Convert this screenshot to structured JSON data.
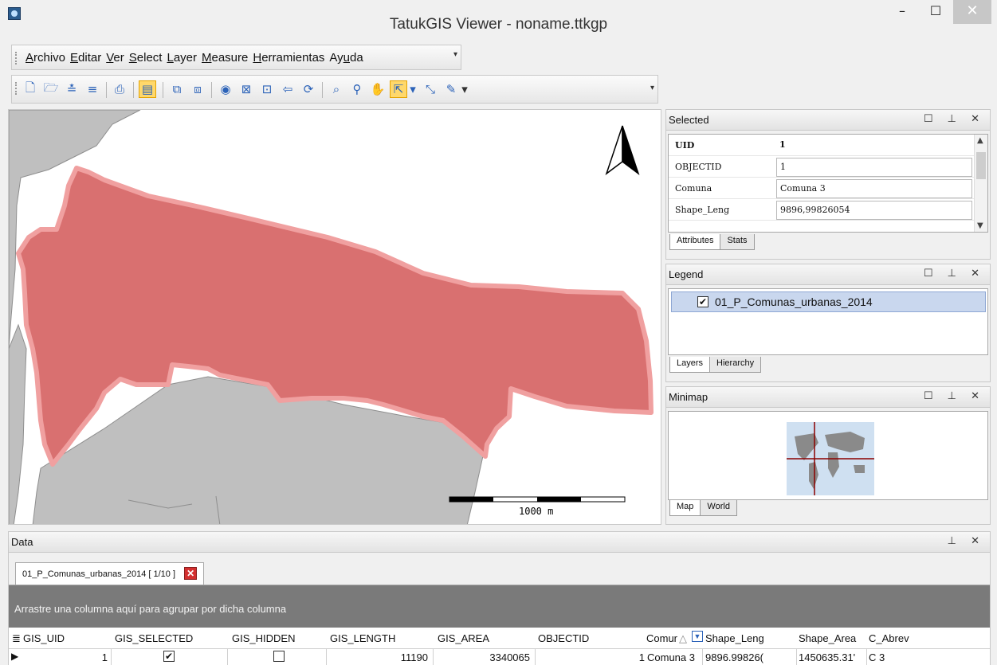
{
  "window": {
    "title": "TatukGIS Viewer - noname.ttkgp",
    "min_glyph": "–",
    "max_glyph": "☐",
    "close_glyph": "✕"
  },
  "menubar": {
    "items": [
      {
        "label": "Archivo",
        "accel": "A"
      },
      {
        "label": "Editar",
        "accel": "E"
      },
      {
        "label": "Ver",
        "accel": "V"
      },
      {
        "label": "Select",
        "accel": "S"
      },
      {
        "label": "Layer",
        "accel": "L"
      },
      {
        "label": "Measure",
        "accel": "M"
      },
      {
        "label": "Herramientas",
        "accel": "H"
      },
      {
        "label": "Ayuda",
        "accel": "u"
      }
    ]
  },
  "toolbar": {
    "icons": [
      "new-icon",
      "open-icon",
      "add-layer-icon",
      "remove-layer-icon",
      "print-icon",
      "edit-properties-icon",
      "copy-icon",
      "export-icon",
      "globe-icon",
      "zoom-extent-icon",
      "zoom-layer-icon",
      "back-icon",
      "refresh-icon",
      "zoom-icon",
      "magnifier-icon",
      "pan-hand-icon",
      "select-arrow-icon",
      "select-dropdown-icon",
      "select-tool-icon",
      "measure-pencil-icon",
      "measure-dropdown-icon"
    ]
  },
  "map": {
    "scalebar_label": "1000 m",
    "selected_fill": "#d97070",
    "selected_outline": "#f0a0a0",
    "background_fill": "#bfbfbf"
  },
  "selected_panel": {
    "title": "Selected",
    "controls": "☐ ⊥ ✕",
    "rows": [
      {
        "key": "UID",
        "value": "1"
      },
      {
        "key": "OBJECTID",
        "value": "1"
      },
      {
        "key": "Comuna",
        "value": "Comuna 3"
      },
      {
        "key": "Shape_Leng",
        "value": "9896,99826054"
      }
    ],
    "tabs": [
      "Attributes",
      "Stats"
    ]
  },
  "legend_panel": {
    "title": "Legend",
    "controls": "☐ ⊥ ✕",
    "layer_name": "01_P_Comunas_urbanas_2014",
    "layer_checked": "✔",
    "tabs": [
      "Layers",
      "Hierarchy"
    ]
  },
  "minimap_panel": {
    "title": "Minimap",
    "controls": "☐ ⊥ ✕",
    "tabs": [
      "Map",
      "World"
    ]
  },
  "data_panel": {
    "title": "Data",
    "controls": "⊥ ✕",
    "tab_label": "01_P_Comunas_urbanas_2014 [ 1/10 ]",
    "tab_close": "✕",
    "group_hint": "Arrastre una columna aquí para agrupar por dicha columna",
    "columns": [
      "GIS_UID",
      "GIS_SELECTED",
      "GIS_HIDDEN",
      "GIS_LENGTH",
      "GIS_AREA",
      "OBJECTID",
      "Comur",
      "Shape_Leng",
      "Shape_Area",
      "C_Abrev"
    ],
    "row": {
      "marker": "▶",
      "GIS_UID": "1",
      "GIS_SELECTED": "✔",
      "GIS_HIDDEN": "",
      "GIS_LENGTH": "11190",
      "GIS_AREA": "3340065",
      "OBJECTID": "1",
      "Comuna": "Comuna 3",
      "Shape_Leng": "9896.99826(",
      "Shape_Area": "1450635.31'",
      "C_Abrev": "C 3"
    }
  }
}
